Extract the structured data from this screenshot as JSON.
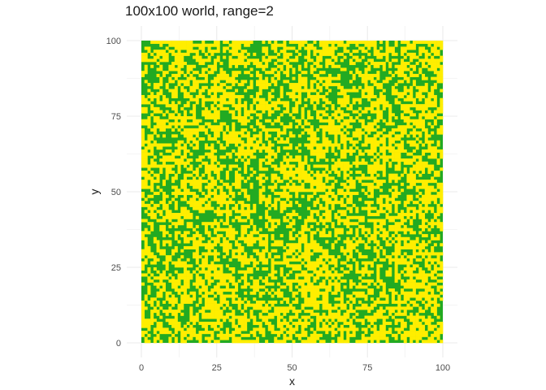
{
  "chart_data": {
    "type": "heatmap",
    "title": "100x100 world, range=2",
    "xlabel": "x",
    "ylabel": "y",
    "xlim": [
      0,
      100
    ],
    "ylim": [
      0,
      100
    ],
    "x_ticks": [
      0,
      25,
      50,
      75,
      100
    ],
    "y_ticks": [
      0,
      25,
      50,
      75,
      100
    ],
    "grid": true,
    "legend": "none",
    "grid_size": 100,
    "range": 2,
    "colors": {
      "value_1": "#ffee00",
      "value_0": "#22aa22",
      "grid": "#ebebeb"
    },
    "cells_note": "100x100 binary cells; individual cell values not legible at this resolution",
    "cells": []
  }
}
